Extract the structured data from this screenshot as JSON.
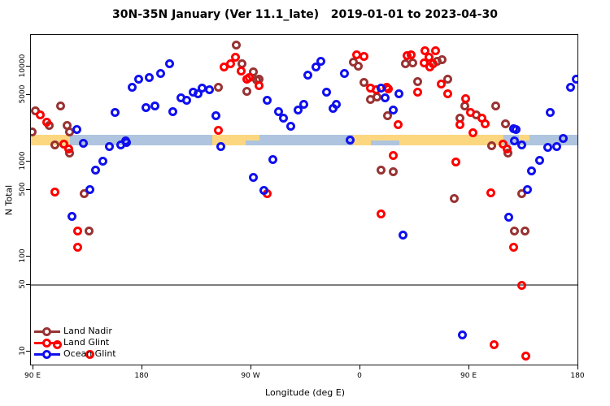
{
  "title": "30N-35N January (Ver 11.1_late)   2019-01-01 to 2023-04-30",
  "chart_data": {
    "type": "scatter",
    "title": "30N-35N January (Ver 11.1_late)   2019-01-01 to 2023-04-30",
    "xlabel": "Longitude (deg E)",
    "ylabel": "N Total",
    "y_scale": "log10",
    "ylim": [
      8,
      22000
    ],
    "y_ticks": [
      10,
      50,
      100,
      500,
      1000,
      5000,
      10000
    ],
    "reference_line_y": 50,
    "x_axis_note": "Axis starts at 90E and wraps eastward: 90E -> 180 -> 90W -> 0 -> 90E -> 180 (450 deg span). Point x values below are degrees east of the left edge (90E).",
    "x_ticks": [
      {
        "label": "90 E",
        "d": 0
      },
      {
        "label": "180",
        "d": 90
      },
      {
        "label": "90 W",
        "d": 180
      },
      {
        "label": "0",
        "d": 270
      },
      {
        "label": "90 E",
        "d": 360
      },
      {
        "label": "180",
        "d": 450
      }
    ],
    "land_ocean_strip": {
      "description": "horizontal map strip at N~2000 showing land (sand) vs ocean (light blue) along the 30N-35N latitude band",
      "value_center": 2000,
      "ocean_color": "#AFC4DE",
      "land_color": "#FCD77F",
      "segments": [
        {
          "type": "land",
          "from_d": -2,
          "to_d": 30
        },
        {
          "type": "ocean",
          "from_d": 30,
          "to_d": 148
        },
        {
          "type": "land",
          "from_d": 148,
          "to_d": 187
        },
        {
          "type": "ocean",
          "from_d": 187,
          "to_d": 264
        },
        {
          "type": "land",
          "from_d": 264,
          "to_d": 388
        },
        {
          "type": "ocean",
          "from_d": 388,
          "to_d": 452
        }
      ],
      "notches": [
        {
          "type": "ocean",
          "from_d": 175,
          "to_d": 187,
          "pos": "lower"
        },
        {
          "type": "ocean",
          "from_d": 279,
          "to_d": 302,
          "pos": "lower"
        },
        {
          "type": "land",
          "from_d": 401,
          "to_d": 410,
          "pos": "upper"
        }
      ]
    },
    "legend_position": "bottom-left",
    "series": [
      {
        "name": "Land Nadir",
        "color": "#993333",
        "points": [
          [
            -1,
            2040
          ],
          [
            2,
            3410
          ],
          [
            13.4,
            2380
          ],
          [
            22.2,
            3840
          ],
          [
            28.2,
            2400
          ],
          [
            30.2,
            2040
          ],
          [
            17.5,
            1490
          ],
          [
            30.2,
            1220
          ],
          [
            42.3,
            462
          ],
          [
            45.7,
            186
          ],
          [
            167.9,
            16970
          ],
          [
            153.1,
            6060
          ],
          [
            172.6,
            10760
          ],
          [
            181.4,
            8800
          ],
          [
            184.7,
            7240
          ],
          [
            186.7,
            7385
          ],
          [
            176.6,
            5500
          ],
          [
            264.6,
            11150
          ],
          [
            268.6,
            10100
          ],
          [
            272.7,
            6870
          ],
          [
            278.1,
            4500
          ],
          [
            284.1,
            4750
          ],
          [
            292.2,
            3030
          ],
          [
            286.8,
            820
          ],
          [
            297.5,
            787
          ],
          [
            307.6,
            10760
          ],
          [
            313.6,
            10970
          ],
          [
            333.8,
            11400
          ],
          [
            337.8,
            11870
          ],
          [
            342.5,
            7385
          ],
          [
            317.6,
            6950
          ],
          [
            356.0,
            3840
          ],
          [
            366.0,
            3090
          ],
          [
            352.6,
            2857
          ],
          [
            381.5,
            3840
          ],
          [
            389.6,
            2520
          ],
          [
            378.8,
            1459
          ],
          [
            391.6,
            1219
          ],
          [
            403.0,
            462
          ],
          [
            347.9,
            410
          ],
          [
            397.6,
            186
          ],
          [
            405.7,
            186
          ]
        ]
      },
      {
        "name": "Land Glint",
        "color": "#FF0000",
        "points": [
          [
            6,
            3090
          ],
          [
            11.4,
            2590
          ],
          [
            24.9,
            1520
          ],
          [
            28.9,
            1370
          ],
          [
            18.1,
            481
          ],
          [
            36.9,
            186
          ],
          [
            36.9,
            125
          ],
          [
            20.1,
            11.9
          ],
          [
            47.0,
            9.3
          ],
          [
            152.5,
            2120
          ],
          [
            166.6,
            12620
          ],
          [
            163.2,
            10760
          ],
          [
            157.8,
            9900
          ],
          [
            171.3,
            8970
          ],
          [
            176.0,
            7385
          ],
          [
            178.0,
            7680
          ],
          [
            186.7,
            6290
          ],
          [
            192.8,
            463
          ],
          [
            267.3,
            13350
          ],
          [
            273.3,
            12850
          ],
          [
            278.7,
            5950
          ],
          [
            283.4,
            5710
          ],
          [
            291.5,
            6060
          ],
          [
            293.5,
            5830
          ],
          [
            300.9,
            2435
          ],
          [
            297.5,
            1150
          ],
          [
            287.4,
            281
          ],
          [
            308.9,
            13100
          ],
          [
            312.3,
            13350
          ],
          [
            323.7,
            14740
          ],
          [
            332.4,
            14740
          ],
          [
            327.0,
            12620
          ],
          [
            330.4,
            10760
          ],
          [
            322.4,
            10970
          ],
          [
            327.7,
            9900
          ],
          [
            337.1,
            6560
          ],
          [
            317.6,
            5380
          ],
          [
            342.5,
            5170
          ],
          [
            357.3,
            4590
          ],
          [
            360.7,
            3280
          ],
          [
            370.1,
            2860
          ],
          [
            373.4,
            2520
          ],
          [
            352.6,
            2435
          ],
          [
            362.7,
            2000
          ],
          [
            348.6,
            1000
          ],
          [
            387.6,
            1516
          ],
          [
            390.9,
            1347
          ],
          [
            378.1,
            471
          ],
          [
            396.9,
            125
          ],
          [
            403.0,
            50
          ],
          [
            380.8,
            11.9
          ],
          [
            407.0,
            9.0
          ]
        ]
      },
      {
        "name": "Ocean Glint",
        "color": "#1010EE",
        "points": [
          [
            35.6,
            2170
          ],
          [
            41.6,
            1550
          ],
          [
            47.0,
            510
          ],
          [
            51.7,
            820
          ],
          [
            57.1,
            1010
          ],
          [
            62.5,
            1430
          ],
          [
            71.9,
            1490
          ],
          [
            77.2,
            1580
          ],
          [
            32.2,
            265
          ],
          [
            67.2,
            3280
          ],
          [
            75.9,
            1640
          ],
          [
            81.9,
            6060
          ],
          [
            87.3,
            7385
          ],
          [
            96.0,
            7680
          ],
          [
            105.4,
            8470
          ],
          [
            112.2,
            10760
          ],
          [
            92.7,
            3690
          ],
          [
            100.7,
            3840
          ],
          [
            115.5,
            3345
          ],
          [
            122.2,
            4680
          ],
          [
            126.3,
            4415
          ],
          [
            132.3,
            5380
          ],
          [
            136.3,
            5170
          ],
          [
            139.7,
            5950
          ],
          [
            145.7,
            5710
          ],
          [
            151.1,
            3030
          ],
          [
            154.5,
            1430
          ],
          [
            192.8,
            4415
          ],
          [
            202.8,
            3345
          ],
          [
            206.2,
            2860
          ],
          [
            212.9,
            2340
          ],
          [
            218.3,
            3480
          ],
          [
            223.0,
            3990
          ],
          [
            198.1,
            1056
          ],
          [
            181.4,
            686
          ],
          [
            190.1,
            500
          ],
          [
            227.0,
            8140
          ],
          [
            233.7,
            9900
          ],
          [
            237.1,
            11400
          ],
          [
            241.8,
            5380
          ],
          [
            247.2,
            3620
          ],
          [
            250.5,
            3990
          ],
          [
            257.2,
            8470
          ],
          [
            261.9,
            1674
          ],
          [
            287.4,
            5950
          ],
          [
            290.8,
            4680
          ],
          [
            302.2,
            5170
          ],
          [
            296.9,
            3480
          ],
          [
            305.0,
            168
          ],
          [
            396.3,
            2210
          ],
          [
            398.9,
            2170
          ],
          [
            397.6,
            1640
          ],
          [
            403.0,
            1486
          ],
          [
            407.7,
            510
          ],
          [
            392.9,
            260
          ],
          [
            411.7,
            804
          ],
          [
            417.8,
            1020
          ],
          [
            424.5,
            1400
          ],
          [
            432.5,
            1430
          ],
          [
            437.9,
            1740
          ],
          [
            426.5,
            3280
          ],
          [
            443.3,
            6060
          ],
          [
            448.0,
            7385
          ],
          [
            354.0,
            14.9
          ]
        ]
      }
    ]
  },
  "colors": {
    "reference_line": "#7d7d7d",
    "axis": "#000000",
    "background": "#ffffff"
  }
}
